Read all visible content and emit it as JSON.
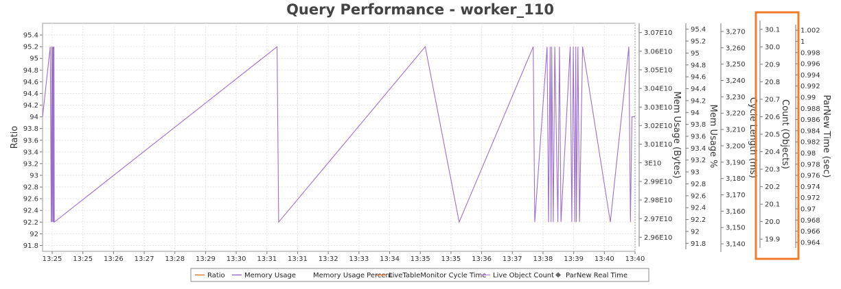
{
  "chart_data": {
    "type": "line",
    "title": "Query Performance - worker_110",
    "x_tick_labels": [
      "13:25",
      "13:25",
      "13:26",
      "13:27",
      "13:28",
      "13:29",
      "13:30",
      "13:31",
      "13:31",
      "13:32",
      "13:33",
      "13:34",
      "13:35",
      "13:35",
      "13:36",
      "13:37",
      "13:38",
      "13:39",
      "13:40",
      "13:40"
    ],
    "axes": {
      "ratio": {
        "label": "Ratio",
        "ylim": [
          91.7,
          95.6
        ],
        "ticks": [
          "91.8",
          "92",
          "92.2",
          "92.4",
          "92.6",
          "92.8",
          "93",
          "93.2",
          "93.4",
          "93.6",
          "93.8",
          "94",
          "94.2",
          "94.4",
          "94.6",
          "94.8",
          "95",
          "95.2",
          "95.4"
        ]
      },
      "mem_bytes": {
        "label": "Mem Usage (Bytes)",
        "ticks": [
          "2.96E10",
          "2.97E10",
          "2.98E10",
          "2.99E10",
          "3E10",
          "3.01E10",
          "3.02E10",
          "3.03E10",
          "3.04E10",
          "3.05E10",
          "3.06E10",
          "3.07E10"
        ]
      },
      "mem_pct": {
        "label": "Mem Usage %",
        "ticks": [
          "91.8",
          "92",
          "92.2",
          "92.4",
          "92.6",
          "92.8",
          "93",
          "93.2",
          "93.4",
          "93.6",
          "93.8",
          "94",
          "94.2",
          "94.4",
          "94.6",
          "94.8",
          "95",
          "95.2",
          "95.4"
        ]
      },
      "cycle": {
        "label": "Cycle Length (ms)",
        "ticks": [
          "3,140",
          "3,150",
          "3,160",
          "3,170",
          "3,180",
          "3,190",
          "3,200",
          "3,210",
          "3,220",
          "3,230",
          "3,240",
          "3,250",
          "3,260",
          "3,270"
        ]
      },
      "count": {
        "label": "Count (Objects)",
        "ticks": [
          "19.9",
          "20.0",
          "20.1",
          "20.2",
          "20.3",
          "20.4",
          "20.5",
          "20.6",
          "20.7",
          "20.8",
          "20.9",
          "30.0",
          "30.1"
        ]
      },
      "parnew": {
        "label": "ParNew Time (sec)",
        "ticks": [
          "0.964",
          "0.966",
          "0.968",
          "0.97",
          "0.972",
          "0.974",
          "0.976",
          "0.978",
          "0.98",
          "0.982",
          "0.984",
          "0.986",
          "0.988",
          "0.99",
          "0.992",
          "0.994",
          "0.996",
          "0.998",
          "1",
          "1.002"
        ]
      }
    },
    "series": [
      {
        "name": "Memory Usage",
        "color": "#9b6fc9",
        "x": [
          0,
          0.25,
          0.28,
          0.3,
          0.31,
          0.33,
          0.34,
          0.35,
          0.36,
          0.37,
          0.38,
          7.6,
          7.65,
          12.4,
          13.5,
          15.9,
          15.95,
          16.35,
          16.4,
          16.45,
          16.48,
          16.5,
          16.55,
          16.6,
          16.7,
          16.75,
          16.8,
          17.1,
          17.15,
          17.2,
          17.25,
          17.28,
          17.3,
          17.35,
          17.4,
          17.5,
          18.4,
          19.0,
          19.05,
          19.1,
          19.2
        ],
        "values": [
          94,
          95.2,
          92.2,
          95.2,
          92.2,
          95.2,
          92.2,
          95.2,
          92.2,
          95.2,
          92.2,
          95.2,
          92.2,
          95.2,
          92.2,
          95.2,
          92.2,
          95.2,
          92.2,
          95.2,
          92.2,
          95.2,
          92.2,
          95.2,
          92.2,
          95.2,
          92.2,
          95.2,
          92.2,
          95.2,
          92.2,
          95.2,
          92.2,
          95.2,
          92.2,
          95.2,
          92.2,
          95.2,
          92.2,
          94,
          94
        ]
      }
    ],
    "legend": {
      "position": "bottom",
      "items": [
        {
          "label": "Ratio",
          "color": "#e07b39",
          "symbol": "line"
        },
        {
          "label": "Memory Usage",
          "color": "#9b6fc9",
          "symbol": "line"
        },
        {
          "label": "Memory Usage Percent",
          "color": "",
          "symbol": "none"
        },
        {
          "label": "LiveTableMonitor Cycle Time",
          "color": "#e07b39",
          "symbol": "line"
        },
        {
          "label": "Live Object Count",
          "color": "#b78fe0",
          "symbol": "line"
        },
        {
          "label": "ParNew Real Time",
          "color": "#666666",
          "symbol": "diamond"
        }
      ]
    },
    "grid": true,
    "highlight_color": "#f07c2a"
  }
}
